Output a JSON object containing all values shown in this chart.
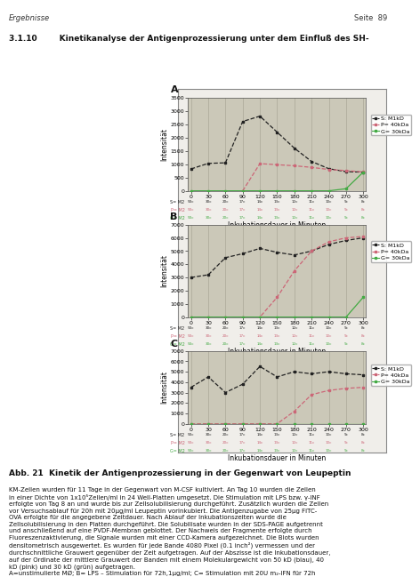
{
  "header_left": "Ergebnisse",
  "header_right": "Seite  89",
  "section_title": "3.1.10        Kinetikanalyse der Antigenprozessierung unter dem Einfluß des SH-",
  "page_bg": "#ffffff",
  "plot_bg": "#cbc8b8",
  "outer_border_color": "#666666",
  "x_label": "Inkubationsdauer in Minuten",
  "y_label": "Intensität",
  "x_ticks": [
    0,
    30,
    60,
    90,
    120,
    150,
    180,
    210,
    240,
    270,
    300
  ],
  "panel_A": {
    "label": "A",
    "ylim": [
      0,
      3500
    ],
    "yticks": [
      0,
      500,
      1000,
      1500,
      2000,
      2500,
      3000,
      3500
    ],
    "ytick_labels": [
      "0",
      "500",
      "1000",
      "1500",
      "2000",
      "2500",
      "3000",
      "3500"
    ],
    "black_x": [
      0,
      30,
      60,
      90,
      120,
      150,
      180,
      210,
      240,
      270,
      300
    ],
    "black_y": [
      820,
      1030,
      1050,
      2600,
      2800,
      2200,
      1600,
      1100,
      830,
      720,
      700
    ],
    "pink_x": [
      90,
      120,
      150,
      180,
      210,
      240,
      270,
      300
    ],
    "pink_y": [
      0,
      1020,
      980,
      940,
      880,
      800,
      760,
      710
    ],
    "green_x": [
      0,
      30,
      60,
      90,
      120,
      150,
      180,
      210,
      240,
      270,
      300
    ],
    "green_y": [
      0,
      0,
      0,
      0,
      0,
      0,
      0,
      0,
      0,
      80,
      700
    ],
    "legend": [
      "S: M1kD",
      "P= 40kDa",
      "G= 30kDa"
    ],
    "show_legend": true,
    "sub_row1_label": "S= M2",
    "sub_row2_label": "P= M2",
    "sub_row3_label": "G= M2",
    "sub_row1_vals": [
      "50c",
      "30c",
      "20c",
      "17c",
      "14c",
      "13c",
      "12c",
      "11c",
      "10c",
      "9c",
      "8c"
    ],
    "sub_row2_vals": [
      "50c",
      "30c",
      "20c",
      "17c",
      "14c",
      "13c",
      "12c",
      "11c",
      "10c",
      "9c",
      "8c"
    ],
    "sub_row3_vals": [
      "50c",
      "30c",
      "20c",
      "17c",
      "14c",
      "13c",
      "12c",
      "11c",
      "10c",
      "9c",
      "8c"
    ]
  },
  "panel_B": {
    "label": "B",
    "ylim": [
      0,
      7000
    ],
    "yticks": [
      0,
      1000,
      2000,
      3000,
      4000,
      5000,
      6000,
      7000
    ],
    "ytick_labels": [
      "0",
      "1000",
      "2000",
      "3000",
      "4000",
      "5000",
      "6000",
      "7000"
    ],
    "black_x": [
      0,
      30,
      60,
      90,
      120,
      150,
      180,
      210,
      240,
      270,
      300
    ],
    "black_y": [
      3000,
      3200,
      4500,
      4800,
      5200,
      4900,
      4700,
      5000,
      5500,
      5800,
      6000
    ],
    "pink_x": [
      0,
      30,
      60,
      90,
      120,
      150,
      180,
      210,
      240,
      270,
      300
    ],
    "pink_y": [
      0,
      0,
      0,
      0,
      0,
      1500,
      3500,
      5000,
      5700,
      6000,
      6100
    ],
    "green_x": [
      0,
      30,
      60,
      90,
      120,
      150,
      180,
      210,
      240,
      270,
      300
    ],
    "green_y": [
      0,
      0,
      0,
      0,
      0,
      0,
      0,
      0,
      0,
      0,
      1500
    ],
    "legend": [
      "S: M1kD",
      "P= 40kDa",
      "G= 30kDa"
    ],
    "show_legend": true
  },
  "panel_C": {
    "label": "C",
    "ylim": [
      0,
      7000
    ],
    "yticks": [
      0,
      1000,
      2000,
      3000,
      4000,
      5000,
      6000,
      7000
    ],
    "ytick_labels": [
      "0",
      "1000",
      "2000",
      "3000",
      "4000",
      "5000",
      "6000",
      "7000"
    ],
    "black_x": [
      0,
      30,
      60,
      90,
      120,
      150,
      180,
      210,
      240,
      270,
      300
    ],
    "black_y": [
      3500,
      4500,
      3000,
      3800,
      5500,
      4500,
      5000,
      4800,
      5000,
      4800,
      4700
    ],
    "pink_x": [
      0,
      30,
      60,
      90,
      120,
      150,
      180,
      210,
      240,
      270,
      300
    ],
    "pink_y": [
      0,
      0,
      0,
      0,
      0,
      0,
      1200,
      2800,
      3200,
      3400,
      3500
    ],
    "green_x": [
      0,
      30,
      60,
      90,
      120,
      150,
      180,
      210,
      240,
      270,
      300
    ],
    "green_y": [
      0,
      0,
      0,
      0,
      0,
      0,
      0,
      0,
      0,
      0,
      0
    ],
    "legend": [
      "S: M1kD",
      "P= 40kDa",
      "G= 30kDa"
    ],
    "show_legend": true
  },
  "caption_title": "Abb. 21  Kinetik der Antigenprozessierung in der Gegenwart von Leupeptin",
  "caption_body": "KM-Zellen wurden für 11 Tage in der Gegenwart von M-CSF kultiviert. An Tag 10 wurden die Zellen\nin einer Dichte von 1x10⁵Zellen/ml in 24 Well-Platten umgesetzt. Die Stimulation mit LPS bzw. γ-INF\nerfolgte von Tag 8 an und wurde bis zur Zellsolubilisierung durchgeführt. Zusätzlich wurden die Zellen\nvor Versuchsablauf für 20h mit 20µg/ml Leupeptin vorinkubiert. Die Antigenzugabe von 25µg FITC-\nOVA erfolgte für die angegebene Zeitdauer. Nach Ablauf der Inkubationszeiten wurde die\nZellsolubilisierung in den Platten durchgeführt. Die Solubilisate wurden in der SDS-PAGE aufgetrennt\nund anschließend auf eine PVDF-Membran geblottet. Der Nachweis der Fragmente erfolgte durch\nFluoreszenzaktivierung, die Signale wurden mit einer CCD-Kamera aufgezeichnet. Die Blots wurden\ndensitometrisch ausgewertet. Es wurden für jede Bande 4080 Pixel (0.1 inch²) vermessen und der\ndurchschnittliche Grauwert gegenüber der Zeit aufgetragen. Auf der Abszisse ist die Inkubationsdauer,\nauf der Ordinate der mittlere Grauwert der Banden mit einem Molekulargewicht von 50 kD (blau), 40\nkD (pink) und 30 kD (grün) aufgetragen.\nA=unstimulierte MØ; B= LPS – Stimulation für 72h,1µg/ml; C= Stimulation mit 20U m₂-IFN für 72h",
  "black_color": "#222222",
  "pink_color": "#cc6677",
  "green_color": "#44aa44",
  "grid_line_color": "#aaa898",
  "green_bar_color": "#33bb33",
  "tick_label_size": 4.5,
  "axis_label_size": 5.5,
  "caption_title_size": 6.5,
  "caption_body_size": 5.0,
  "legend_size": 4.5
}
